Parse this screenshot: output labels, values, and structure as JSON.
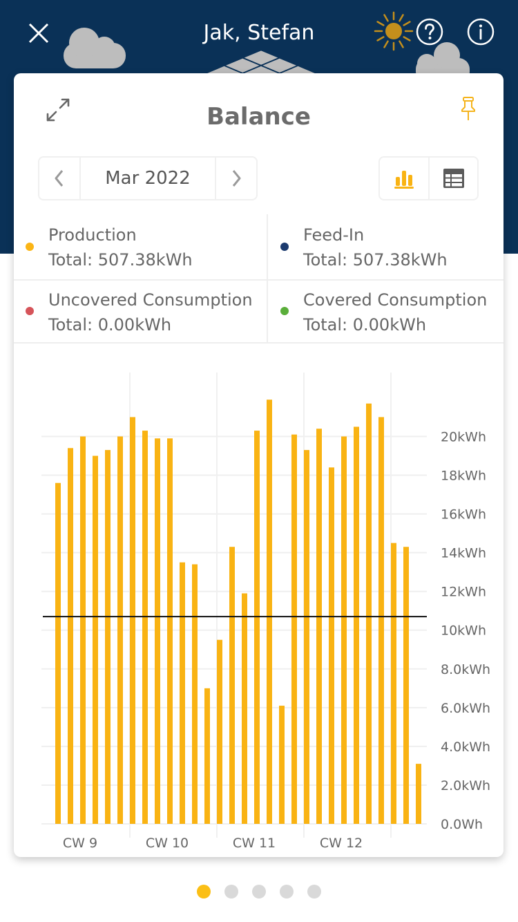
{
  "header": {
    "title": "Jak, Stefan"
  },
  "card": {
    "date_selector": {
      "label": "Mar 2022"
    },
    "view_toggle": {
      "active": "chart"
    }
  },
  "pagination": {
    "pages": 5,
    "active_index": 0
  },
  "colors": {
    "header_bg": "#0a3157",
    "accent": "#f9b313",
    "sun": "#c48f1c",
    "cloud": "#bdbdbd"
  },
  "chart_data": {
    "type": "bar",
    "title": "Balance",
    "xlabel": "",
    "ylabel": "",
    "unit": "kWh",
    "legend": [
      {
        "name": "Production",
        "total": "Total: 507.38kWh",
        "color": "#fbb516"
      },
      {
        "name": "Feed-In",
        "total": "Total: 507.38kWh",
        "color": "#1b3a6e"
      },
      {
        "name": "Uncovered Consumption",
        "total": "Total: 0.00kWh",
        "color": "#d6545a"
      },
      {
        "name": "Covered Consumption",
        "total": "Total: 0.00kWh",
        "color": "#5aae3a"
      }
    ],
    "x": [
      1,
      2,
      3,
      4,
      5,
      6,
      7,
      8,
      9,
      10,
      11,
      12,
      13,
      14,
      15,
      16,
      17,
      18,
      19,
      20,
      21,
      22,
      23,
      24,
      25,
      26,
      27,
      28,
      29,
      30
    ],
    "series": [
      {
        "legend_index": 0,
        "color": "#f9b313",
        "values": [
          17.6,
          19.4,
          20.0,
          19.0,
          19.3,
          20.0,
          21.0,
          20.3,
          19.9,
          19.9,
          13.5,
          13.4,
          7.0,
          9.5,
          14.3,
          11.9,
          20.3,
          21.9,
          6.1,
          20.1,
          19.3,
          20.4,
          18.4,
          20.0,
          20.5,
          21.7,
          21.0,
          14.5,
          14.3,
          3.1
        ]
      }
    ],
    "reference_line": 10.7,
    "ylim": [
      0,
      23.3
    ],
    "yticks": [
      0,
      2,
      4,
      6,
      8,
      10,
      12,
      14,
      16,
      18,
      20
    ],
    "ytick_labels": [
      "0.0Wh",
      "2.0kWh",
      "4.0kWh",
      "6.0kWh",
      "8.0kWh",
      "10kWh",
      "12kWh",
      "14kWh",
      "16kWh",
      "18kWh",
      "20kWh"
    ],
    "week_labels": [
      {
        "label": "CW 9",
        "start_day": 0
      },
      {
        "label": "CW 10",
        "start_day": 7
      },
      {
        "label": "CW 11",
        "start_day": 14
      },
      {
        "label": "CW 12",
        "start_day": 21
      }
    ],
    "week_boundaries": [
      7,
      14,
      21,
      28
    ],
    "grid": true,
    "legend_position": "top"
  }
}
